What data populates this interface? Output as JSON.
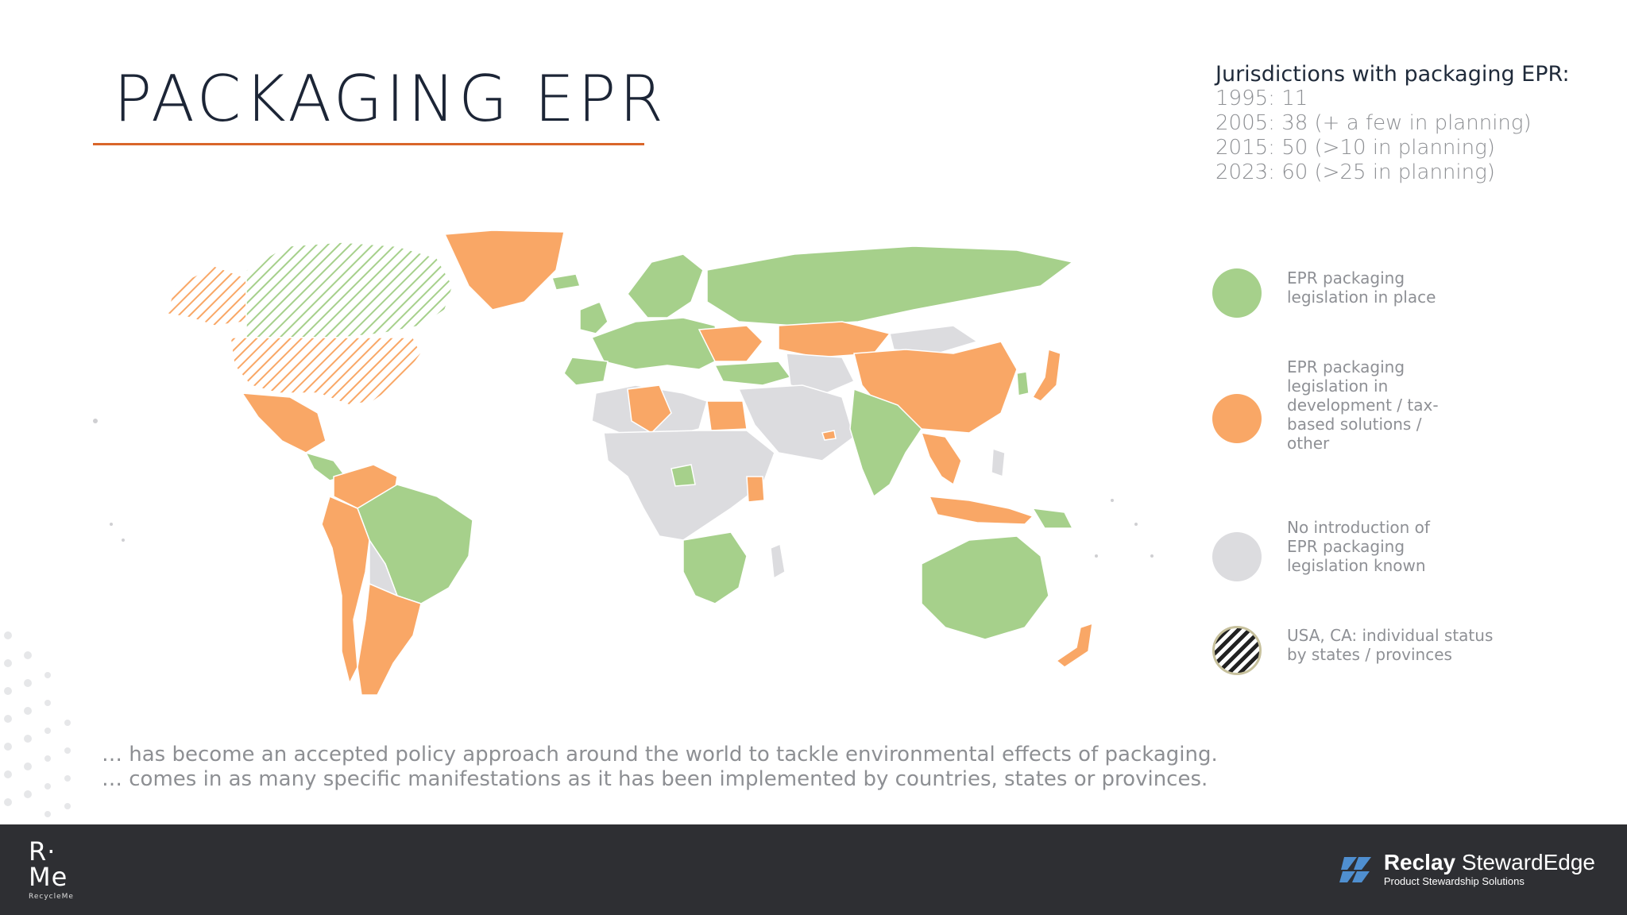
{
  "slide": {
    "title": "PACKAGING EPR",
    "accent_color": "#d9662a"
  },
  "stats": {
    "heading": "Jurisdictions with packaging EPR:",
    "lines": [
      "1995: 11",
      "2005: 38 (+ a few in planning)",
      "2015: 50 (>10 in planning)",
      "2023: 60 (>25 in planning)"
    ]
  },
  "legend": [
    {
      "label": "EPR packaging legislation in place",
      "color": "#a6d08b",
      "icon": "green-circle"
    },
    {
      "label": "EPR packaging legislation in development / tax-based solutions / other",
      "color": "#f9a766",
      "icon": "orange-circle"
    },
    {
      "label": "No introduction of EPR packaging legislation known",
      "color": "#dcdcdf",
      "icon": "grey-circle"
    },
    {
      "label": "USA, CA: individual status by states / provinces",
      "color": "#222222",
      "icon": "hatched-circle"
    }
  ],
  "map": {
    "colors": {
      "in_place": "#a6d08b",
      "in_development": "#f9a766",
      "none": "#dcdcdf"
    }
  },
  "description": {
    "line1": "… has become an accepted policy approach around the world to tackle environmental effects of packaging.",
    "line2": "… comes in as many specific manifestations as it has been implemented by countries, states or provinces."
  },
  "footer": {
    "left_logo_top": "R·",
    "left_logo_bottom": "Me",
    "left_logo_caption": "RecycleMe",
    "brand_bold": "Reclay",
    "brand_light": "StewardEdge",
    "brand_tagline": "Product Stewardship Solutions"
  }
}
